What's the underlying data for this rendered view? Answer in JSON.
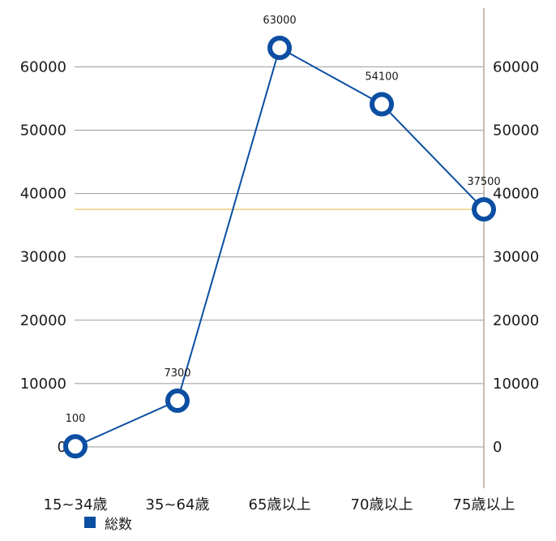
{
  "chart_data": {
    "type": "line",
    "categories": [
      "15~34歳",
      "35~64歳",
      "65歳以上",
      "70歳以上",
      "75歳以上"
    ],
    "series": [
      {
        "name": "総数",
        "values": [
          100,
          7300,
          63000,
          54100,
          37500
        ],
        "data_labels": [
          "100",
          "7300",
          "63000",
          "54100",
          "37500"
        ],
        "color": "#0b4ea2"
      }
    ],
    "y_ticks": [
      "0",
      "10000",
      "20000",
      "30000",
      "40000",
      "50000",
      "60000"
    ],
    "y_tick_values": [
      0,
      10000,
      20000,
      30000,
      40000,
      50000,
      60000
    ],
    "y2_ticks": [
      "0",
      "10000",
      "20000",
      "30000",
      "40000",
      "50000",
      "60000"
    ],
    "ylim": [
      -5000,
      68000
    ],
    "reference_line": {
      "value": 37500,
      "color": "#e8c46a"
    },
    "grid": true,
    "legend_position": "bottom-left",
    "colors": {
      "series": "#0b4ea2",
      "grid": "#9a9a9a",
      "right_axis": "#b3a79a",
      "reference": "#e8c46a",
      "marker_fill": "#ffffff"
    }
  }
}
